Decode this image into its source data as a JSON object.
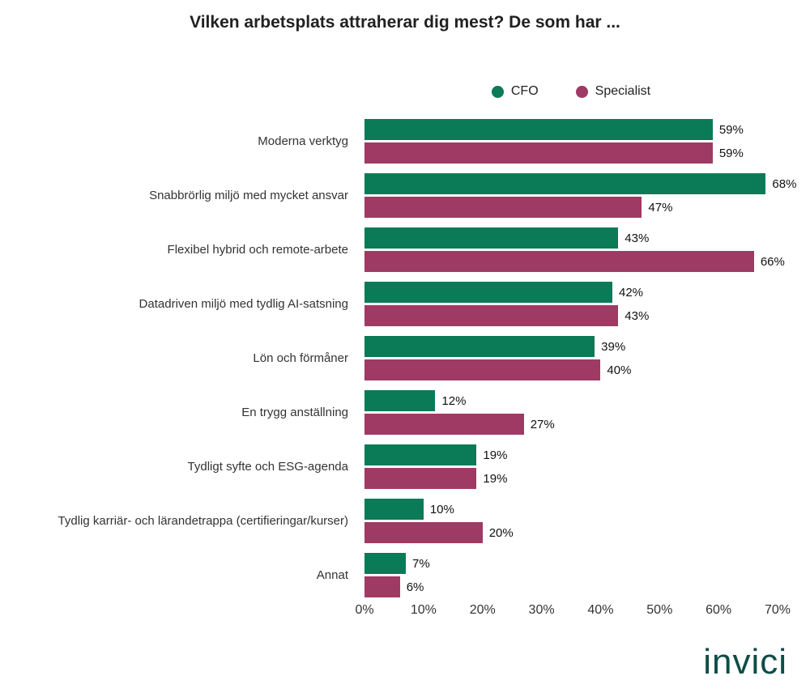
{
  "title": "Vilken arbetsplats attraherar dig mest? De som har ...",
  "legend": [
    {
      "label": "CFO",
      "color": "#0a7a57"
    },
    {
      "label": "Specialist",
      "color": "#9e3a64"
    }
  ],
  "chart_data": {
    "type": "bar",
    "orientation": "horizontal",
    "title": "Vilken arbetsplats attraherar dig mest? De som har ...",
    "categories": [
      "Moderna verktyg",
      "Snabbrörlig miljö med mycket ansvar",
      "Flexibel hybrid och remote-arbete",
      "Datadriven miljö med tydlig AI-satsning",
      "Lön och förmåner",
      "En trygg anställning",
      "Tydligt syfte och ESG-agenda",
      "Tydlig karriär- och lärandetrappa (certifieringar/kurser)",
      "Annat"
    ],
    "series": [
      {
        "name": "CFO",
        "color": "#0a7a57",
        "values": [
          59,
          68,
          43,
          42,
          39,
          12,
          19,
          10,
          7
        ]
      },
      {
        "name": "Specialist",
        "color": "#9e3a64",
        "values": [
          59,
          47,
          66,
          43,
          40,
          27,
          19,
          20,
          6
        ]
      }
    ],
    "value_suffix": "%",
    "xlim": [
      0,
      70
    ],
    "x_ticks": [
      "0%",
      "10%",
      "20%",
      "30%",
      "40%",
      "50%",
      "60%",
      "70%"
    ],
    "grid": false,
    "legend_position": "top"
  },
  "logo_text": "invici"
}
